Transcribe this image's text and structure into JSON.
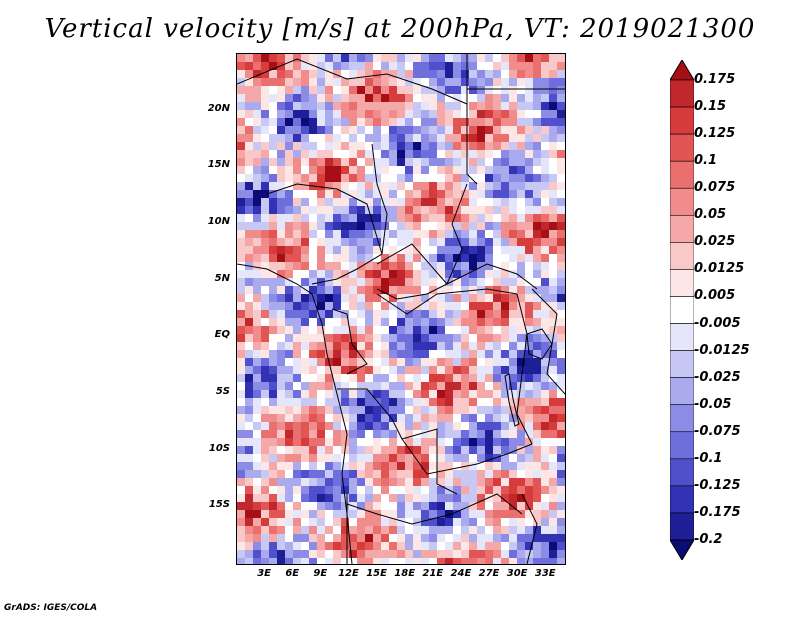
{
  "title": "Vertical velocity [m/s] at 200hPa, VT: 2019021300",
  "footer": "GrADS: IGES/COLA",
  "map": {
    "lat_labels": [
      "20N",
      "15N",
      "10N",
      "5N",
      "EQ",
      "5S",
      "10S",
      "15S"
    ],
    "lon_labels": [
      "3E",
      "6E",
      "9E",
      "12E",
      "15E",
      "18E",
      "21E",
      "24E",
      "27E",
      "30E",
      "33E"
    ],
    "lat_values": [
      20,
      15,
      10,
      5,
      0,
      -5,
      -10,
      -15
    ],
    "lon_values": [
      3,
      6,
      9,
      12,
      15,
      18,
      21,
      24,
      27,
      30,
      33
    ],
    "lon_range": [
      0,
      35
    ],
    "lat_range": [
      -20,
      25
    ]
  },
  "colorbar": {
    "labels": [
      "0.175",
      "0.15",
      "0.125",
      "0.1",
      "0.075",
      "0.05",
      "0.025",
      "0.0125",
      "0.005",
      "-0.005",
      "-0.0125",
      "-0.025",
      "-0.05",
      "-0.075",
      "-0.1",
      "-0.125",
      "-0.175",
      "-0.2"
    ],
    "colors": [
      "#a50f15",
      "#c0282d",
      "#d63c3c",
      "#e25555",
      "#ea7070",
      "#f08c8c",
      "#f5a8a8",
      "#f9c8c8",
      "#fce6e6",
      "#ffffff",
      "#e6e6fa",
      "#c8c8f5",
      "#aaaaef",
      "#8c8ce6",
      "#6e6edc",
      "#5050cc",
      "#3232b4",
      "#1e1e96",
      "#0c0c78"
    ]
  }
}
